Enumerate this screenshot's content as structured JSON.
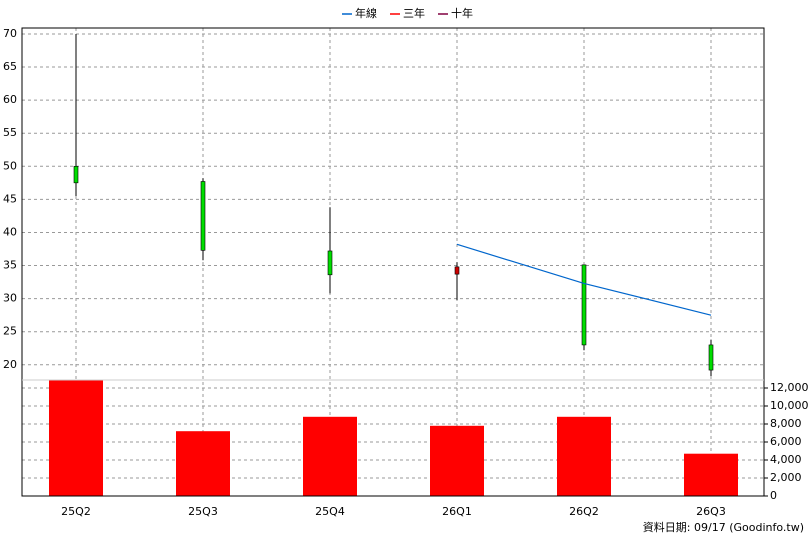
{
  "chart_data": {
    "type": "candlestick",
    "categories": [
      "25Q2",
      "25Q3",
      "25Q4",
      "26Q1",
      "26Q2",
      "26Q3"
    ],
    "open": [
      50,
      47.7,
      37.2,
      33.7,
      35.1,
      23
    ],
    "high": [
      70,
      48.2,
      43.8,
      35.5,
      35.1,
      23.8
    ],
    "low": [
      45.5,
      35.8,
      30.8,
      29.8,
      22.2,
      18.3
    ],
    "close": [
      47.5,
      37.3,
      33.6,
      34.8,
      23,
      19.2
    ],
    "up_color": "#cc0000",
    "down_color": "#00dd00",
    "series": [
      {
        "name": "年線",
        "color": "#0066cc",
        "values": [
          null,
          null,
          null,
          38.2,
          32.3,
          27.5
        ]
      },
      {
        "name": "三年",
        "color": "#ff0000",
        "values": [
          null,
          null,
          null,
          null,
          null,
          null
        ]
      },
      {
        "name": "十年",
        "color": "#800040",
        "values": [
          null,
          null,
          null,
          null,
          null,
          null
        ]
      }
    ],
    "ylim": [
      17.7,
      70.9
    ],
    "yticks": [
      20,
      25,
      30,
      35,
      40,
      45,
      50,
      55,
      60,
      65,
      70
    ],
    "volume": {
      "values": [
        12900,
        7200,
        8800,
        7800,
        8800,
        4700
      ],
      "color": "#ff0000",
      "ylim": [
        0,
        13000
      ],
      "yticks": [
        0,
        {
          "value": 2000,
          "label": "2,000"
        },
        {
          "value": 4000,
          "label": "4,000"
        },
        {
          "value": 6000,
          "label": "6,000"
        },
        {
          "value": 8000,
          "label": "8,000"
        },
        {
          "value": 10000,
          "label": "10,000"
        },
        {
          "value": 12000,
          "label": "12,000"
        }
      ]
    },
    "grid": true,
    "source": "資料日期: 09/17  (Goodinfo.tw)"
  }
}
